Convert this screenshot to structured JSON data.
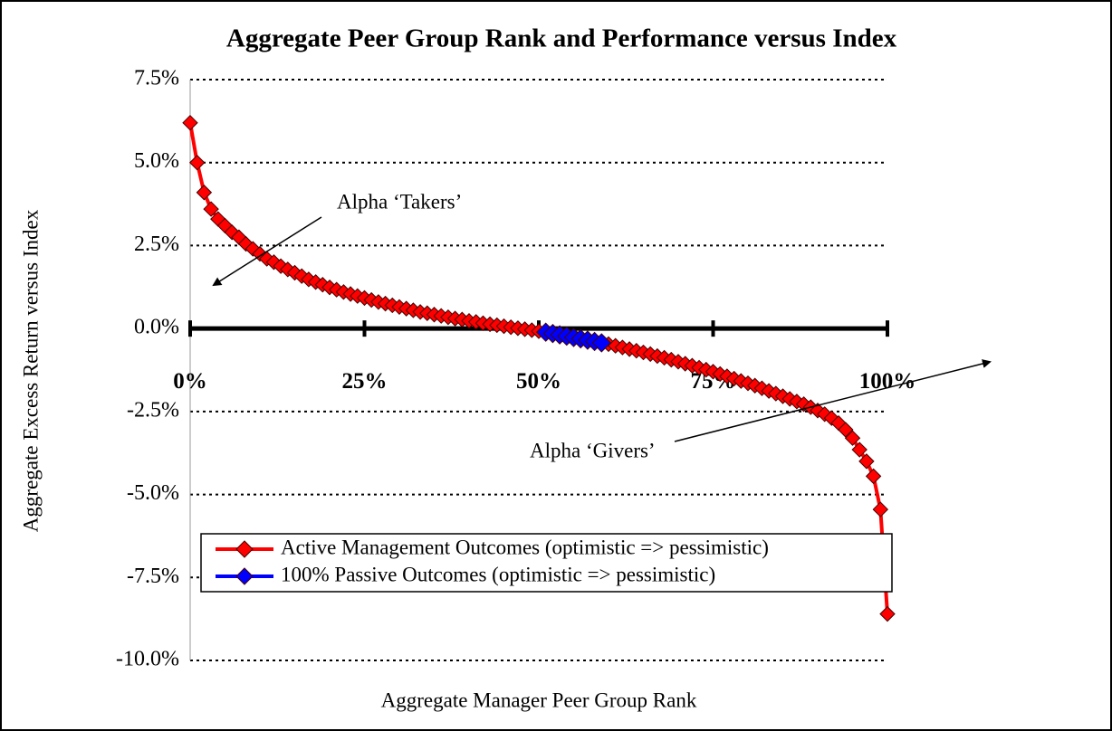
{
  "chart_data": {
    "type": "line",
    "title": "Aggregate Peer Group Rank and Performance versus Index",
    "x_label": "Aggregate Manager Peer Group Rank",
    "y_label": "Aggregate Excess Return versus Index",
    "annotations": [
      "Alpha ‘Takers’",
      "Alpha ‘Givers’"
    ],
    "x": [
      0,
      1,
      2,
      3,
      4,
      5,
      6,
      7,
      8,
      9,
      10,
      11,
      12,
      13,
      14,
      15,
      16,
      17,
      18,
      19,
      20,
      21,
      22,
      23,
      24,
      25,
      26,
      27,
      28,
      29,
      30,
      31,
      32,
      33,
      34,
      35,
      36,
      37,
      38,
      39,
      40,
      41,
      42,
      43,
      44,
      45,
      46,
      47,
      48,
      49,
      50,
      51,
      52,
      53,
      54,
      55,
      56,
      57,
      58,
      59,
      60,
      61,
      62,
      63,
      64,
      65,
      66,
      67,
      68,
      69,
      70,
      71,
      72,
      73,
      74,
      75,
      76,
      77,
      78,
      79,
      80,
      81,
      82,
      83,
      84,
      85,
      86,
      87,
      88,
      89,
      90,
      91,
      92,
      93,
      94,
      95,
      96,
      97,
      98,
      99,
      100
    ],
    "series": [
      {
        "name": "Active Management Outcomes (optimistic => pessimistic)",
        "color": "#ff0000",
        "values": [
          6.2,
          5.0,
          4.1,
          3.6,
          3.3,
          3.1,
          2.9,
          2.75,
          2.55,
          2.4,
          2.25,
          2.1,
          2.0,
          1.88,
          1.78,
          1.68,
          1.58,
          1.48,
          1.4,
          1.32,
          1.24,
          1.17,
          1.1,
          1.04,
          0.98,
          0.92,
          0.86,
          0.8,
          0.75,
          0.7,
          0.65,
          0.6,
          0.55,
          0.5,
          0.46,
          0.42,
          0.38,
          0.34,
          0.3,
          0.27,
          0.23,
          0.2,
          0.16,
          0.13,
          0.1,
          0.07,
          0.04,
          0.01,
          -0.02,
          -0.05,
          -0.08,
          -0.11,
          -0.15,
          -0.19,
          -0.23,
          -0.27,
          -0.31,
          -0.35,
          -0.39,
          -0.43,
          -0.47,
          -0.52,
          -0.57,
          -0.62,
          -0.67,
          -0.72,
          -0.77,
          -0.83,
          -0.88,
          -0.94,
          -1.0,
          -1.06,
          -1.12,
          -1.18,
          -1.24,
          -1.3,
          -1.37,
          -1.44,
          -1.51,
          -1.58,
          -1.65,
          -1.72,
          -1.8,
          -1.88,
          -1.96,
          -2.04,
          -2.12,
          -2.2,
          -2.28,
          -2.37,
          -2.47,
          -2.58,
          -2.7,
          -2.85,
          -3.05,
          -3.3,
          -3.65,
          -4.0,
          -4.45,
          -5.45,
          -8.6
        ]
      },
      {
        "name": "100% Passive Outcomes (optimistic => pessimistic)",
        "color": "#0000ff",
        "values": [
          null,
          null,
          null,
          null,
          null,
          null,
          null,
          null,
          null,
          null,
          null,
          null,
          null,
          null,
          null,
          null,
          null,
          null,
          null,
          null,
          null,
          null,
          null,
          null,
          null,
          null,
          null,
          null,
          null,
          null,
          null,
          null,
          null,
          null,
          null,
          null,
          null,
          null,
          null,
          null,
          null,
          null,
          null,
          null,
          null,
          null,
          null,
          null,
          null,
          null,
          null,
          -0.11,
          -0.15,
          -0.19,
          -0.23,
          -0.27,
          -0.31,
          -0.35,
          -0.39,
          -0.43,
          null,
          null,
          null,
          null,
          null,
          null,
          null,
          null,
          null,
          null,
          null,
          null,
          null,
          null,
          null,
          null,
          null,
          null,
          null,
          null,
          null,
          null,
          null,
          null,
          null,
          null,
          null,
          null,
          null,
          null,
          null,
          null,
          null,
          null,
          null,
          null,
          null,
          null,
          null,
          null,
          null
        ]
      }
    ],
    "xlim": [
      0,
      100
    ],
    "xticks": [
      {
        "value": 0,
        "label": "0%"
      },
      {
        "value": 25,
        "label": "25%"
      },
      {
        "value": 50,
        "label": "50%"
      },
      {
        "value": 75,
        "label": "75%"
      },
      {
        "value": 100,
        "label": "100%"
      }
    ],
    "ylim": [
      -10,
      7.5
    ],
    "yticks": [
      {
        "value": -10,
        "label": "-10.0%"
      },
      {
        "value": -7.5,
        "label": "-7.5%"
      },
      {
        "value": -5,
        "label": "-5.0%"
      },
      {
        "value": -2.5,
        "label": "-2.5%"
      },
      {
        "value": 0,
        "label": "0.0%"
      },
      {
        "value": 2.5,
        "label": "2.5%"
      },
      {
        "value": 5,
        "label": "5.0%"
      },
      {
        "value": 7.5,
        "label": "7.5%"
      }
    ],
    "grid": true,
    "legend": "lower left"
  }
}
